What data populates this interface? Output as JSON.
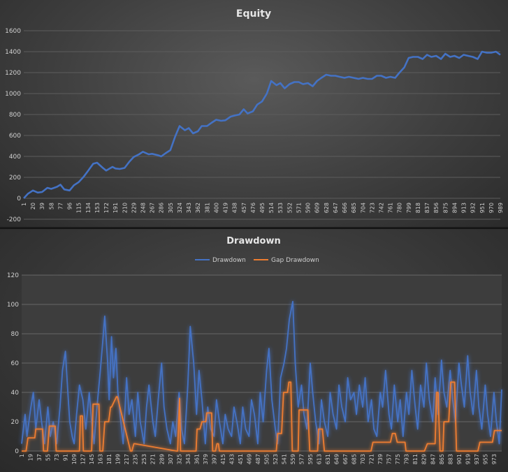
{
  "chart_data": [
    {
      "type": "line",
      "title": "Equity",
      "ylim": [
        -200,
        1600
      ],
      "yticks": [
        -200,
        0,
        200,
        400,
        600,
        800,
        1000,
        1200,
        1400,
        1600
      ],
      "xlim": [
        1,
        989
      ],
      "xticks": [
        1,
        20,
        39,
        58,
        77,
        96,
        115,
        134,
        153,
        172,
        191,
        210,
        229,
        248,
        267,
        286,
        305,
        324,
        343,
        362,
        381,
        400,
        419,
        438,
        457,
        476,
        495,
        514,
        533,
        552,
        571,
        590,
        609,
        628,
        647,
        666,
        685,
        704,
        723,
        742,
        761,
        780,
        799,
        818,
        837,
        856,
        875,
        894,
        913,
        932,
        951,
        970,
        989
      ],
      "colors": {
        "line": "#4472c4"
      },
      "series": [
        {
          "name": "",
          "x": [
            1,
            10,
            20,
            30,
            39,
            50,
            58,
            70,
            77,
            85,
            96,
            105,
            115,
            125,
            134,
            145,
            153,
            165,
            172,
            185,
            191,
            200,
            210,
            220,
            229,
            240,
            248,
            260,
            267,
            280,
            286,
            295,
            305,
            315,
            324,
            335,
            343,
            352,
            362,
            370,
            381,
            390,
            400,
            410,
            419,
            430,
            438,
            448,
            457,
            465,
            476,
            485,
            495,
            505,
            514,
            525,
            533,
            542,
            552,
            562,
            571,
            580,
            590,
            600,
            609,
            618,
            628,
            638,
            647,
            656,
            666,
            675,
            685,
            695,
            704,
            714,
            723,
            733,
            742,
            752,
            761,
            771,
            780,
            790,
            799,
            808,
            818,
            828,
            837,
            846,
            856,
            866,
            875,
            885,
            894,
            904,
            913,
            922,
            932,
            942,
            951,
            961,
            970,
            980,
            989
          ],
          "y": [
            0,
            45,
            75,
            55,
            60,
            100,
            90,
            110,
            130,
            85,
            75,
            125,
            155,
            205,
            260,
            330,
            340,
            290,
            265,
            300,
            285,
            280,
            290,
            350,
            395,
            420,
            445,
            420,
            425,
            410,
            400,
            430,
            460,
            590,
            690,
            650,
            670,
            620,
            640,
            690,
            690,
            720,
            750,
            740,
            745,
            780,
            790,
            800,
            850,
            810,
            830,
            895,
            925,
            1000,
            1120,
            1080,
            1100,
            1050,
            1090,
            1110,
            1110,
            1090,
            1100,
            1070,
            1120,
            1150,
            1180,
            1170,
            1170,
            1160,
            1150,
            1160,
            1150,
            1140,
            1150,
            1140,
            1140,
            1170,
            1170,
            1150,
            1160,
            1150,
            1200,
            1250,
            1340,
            1350,
            1350,
            1330,
            1370,
            1350,
            1360,
            1330,
            1380,
            1350,
            1360,
            1340,
            1370,
            1360,
            1350,
            1330,
            1400,
            1390,
            1390,
            1400,
            1370
          ]
        }
      ]
    },
    {
      "type": "line",
      "title": "Drawdown",
      "legend_position": "top",
      "ylim": [
        0,
        120
      ],
      "yticks": [
        0,
        20,
        40,
        60,
        80,
        100,
        120
      ],
      "xlim": [
        1,
        989
      ],
      "xticks": [
        1,
        19,
        37,
        55,
        73,
        91,
        109,
        127,
        145,
        163,
        181,
        199,
        217,
        235,
        253,
        271,
        289,
        307,
        325,
        343,
        361,
        379,
        397,
        415,
        433,
        451,
        469,
        487,
        505,
        523,
        541,
        559,
        577,
        595,
        613,
        631,
        649,
        667,
        685,
        703,
        721,
        739,
        757,
        775,
        793,
        811,
        829,
        847,
        865,
        883,
        901,
        919,
        937,
        955,
        973
      ],
      "colors": {
        "Drawdown": "#4472c4",
        "Gap Drawdown": "#ed7d31"
      },
      "series": [
        {
          "name": "Drawdown",
          "x": [
            1,
            8,
            12,
            20,
            25,
            30,
            37,
            42,
            48,
            55,
            60,
            66,
            73,
            80,
            85,
            91,
            96,
            100,
            105,
            109,
            114,
            120,
            127,
            133,
            140,
            145,
            150,
            156,
            163,
            168,
            172,
            178,
            181,
            186,
            190,
            195,
            199,
            205,
            210,
            217,
            222,
            228,
            235,
            240,
            245,
            253,
            258,
            263,
            271,
            276,
            282,
            289,
            294,
            300,
            307,
            312,
            318,
            325,
            330,
            336,
            343,
            348,
            355,
            361,
            366,
            372,
            379,
            384,
            390,
            397,
            402,
            408,
            415,
            420,
            426,
            433,
            438,
            444,
            451,
            456,
            462,
            469,
            474,
            480,
            487,
            492,
            498,
            505,
            510,
            516,
            523,
            528,
            534,
            541,
            546,
            552,
            559,
            564,
            570,
            577,
            582,
            588,
            595,
            600,
            606,
            613,
            618,
            624,
            631,
            636,
            642,
            649,
            654,
            660,
            667,
            672,
            678,
            685,
            690,
            696,
            703,
            708,
            714,
            721,
            726,
            732,
            739,
            744,
            750,
            757,
            762,
            768,
            775,
            780,
            786,
            793,
            798,
            804,
            811,
            816,
            822,
            829,
            834,
            840,
            847,
            852,
            858,
            865,
            870,
            876,
            883,
            888,
            894,
            901,
            906,
            912,
            919,
            924,
            930,
            937,
            942,
            948,
            955,
            960,
            966,
            973,
            978,
            984,
            989
          ],
          "y": [
            5,
            25,
            10,
            30,
            40,
            15,
            35,
            20,
            5,
            30,
            10,
            20,
            5,
            30,
            55,
            68,
            40,
            20,
            10,
            5,
            25,
            45,
            35,
            15,
            40,
            20,
            5,
            30,
            55,
            75,
            92,
            60,
            35,
            78,
            50,
            70,
            40,
            20,
            5,
            50,
            25,
            35,
            10,
            40,
            20,
            5,
            30,
            45,
            20,
            10,
            35,
            60,
            30,
            15,
            5,
            20,
            10,
            40,
            15,
            5,
            45,
            85,
            60,
            25,
            55,
            35,
            5,
            30,
            15,
            10,
            35,
            20,
            5,
            25,
            15,
            10,
            30,
            20,
            5,
            30,
            15,
            10,
            35,
            25,
            5,
            40,
            20,
            55,
            70,
            35,
            15,
            5,
            50,
            60,
            70,
            90,
            102,
            60,
            30,
            45,
            25,
            15,
            60,
            40,
            20,
            5,
            35,
            20,
            10,
            40,
            25,
            15,
            45,
            30,
            20,
            50,
            35,
            40,
            25,
            45,
            30,
            50,
            20,
            35,
            15,
            10,
            40,
            30,
            55,
            25,
            15,
            45,
            20,
            35,
            10,
            40,
            25,
            55,
            30,
            15,
            45,
            30,
            60,
            35,
            20,
            50,
            25,
            62,
            40,
            30,
            55,
            35,
            20,
            60,
            45,
            30,
            65,
            40,
            25,
            55,
            30,
            15,
            45,
            25,
            10,
            40,
            20,
            5,
            42
          ]
        },
        {
          "name": "Gap Drawdown",
          "x": [
            1,
            10,
            14,
            28,
            30,
            44,
            46,
            54,
            58,
            70,
            72,
            120,
            122,
            126,
            128,
            145,
            148,
            160,
            162,
            168,
            172,
            180,
            184,
            186,
            196,
            198,
            225,
            228,
            232,
            234,
            320,
            322,
            326,
            328,
            360,
            362,
            368,
            372,
            380,
            382,
            392,
            394,
            400,
            403,
            406,
            408,
            525,
            528,
            536,
            540,
            548,
            551,
            555,
            558,
            570,
            572,
            590,
            594,
            610,
            612,
            620,
            624,
            720,
            724,
            760,
            764,
            770,
            774,
            790,
            792,
            830,
            836,
            852,
            855,
            858,
            862,
            868,
            870,
            880,
            884,
            892,
            896,
            940,
            944,
            970,
            974,
            989
          ],
          "y": [
            0,
            0,
            9,
            9,
            15,
            15,
            0,
            0,
            17,
            17,
            0,
            0,
            24,
            24,
            0,
            0,
            32,
            32,
            0,
            0,
            20,
            20,
            30,
            30,
            37,
            37,
            0,
            0,
            5,
            5,
            0,
            0,
            36,
            0,
            0,
            15,
            15,
            20,
            20,
            26,
            26,
            0,
            0,
            5,
            5,
            0,
            0,
            12,
            12,
            40,
            40,
            47,
            47,
            0,
            0,
            28,
            28,
            0,
            0,
            15,
            15,
            0,
            0,
            6,
            6,
            12,
            12,
            6,
            6,
            0,
            0,
            5,
            5,
            40,
            40,
            0,
            0,
            20,
            20,
            47,
            47,
            0,
            0,
            6,
            6,
            14,
            14
          ]
        }
      ]
    }
  ]
}
